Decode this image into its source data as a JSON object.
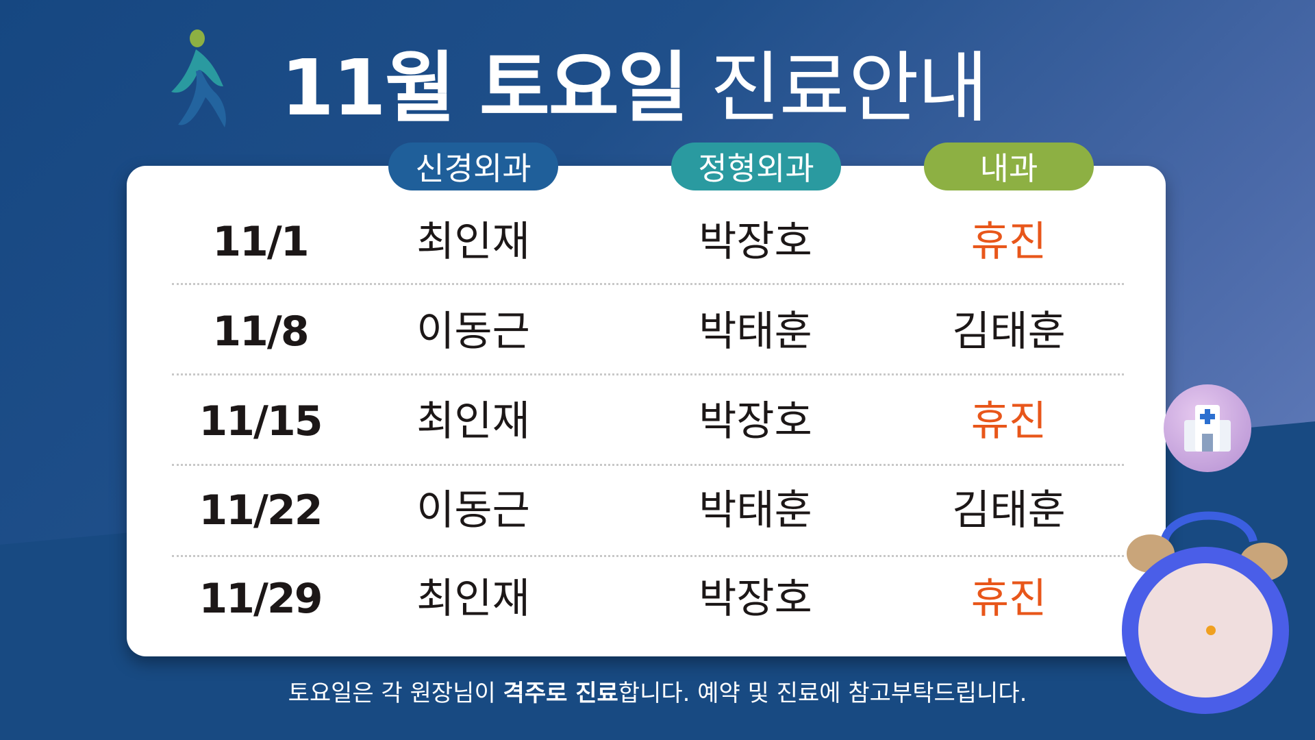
{
  "title": {
    "month": "11월 토요일",
    "rest": " 진료안내"
  },
  "departments": [
    "신경외과",
    "정형외과",
    "내과"
  ],
  "rows": [
    {
      "date": "11/1",
      "neuro": "최인재",
      "ortho": "박장호",
      "internal": "휴진",
      "internal_off": true
    },
    {
      "date": "11/8",
      "neuro": "이동근",
      "ortho": "박태훈",
      "internal": "김태훈",
      "internal_off": false
    },
    {
      "date": "11/15",
      "neuro": "최인재",
      "ortho": "박장호",
      "internal": "휴진",
      "internal_off": true
    },
    {
      "date": "11/22",
      "neuro": "이동근",
      "ortho": "박태훈",
      "internal": "김태훈",
      "internal_off": false
    },
    {
      "date": "11/29",
      "neuro": "최인재",
      "ortho": "박장호",
      "internal": "휴진",
      "internal_off": true
    }
  ],
  "footer": {
    "pre": "토요일은 각 원장님이 ",
    "bold": "격주로 진료",
    "post": "합니다. 예약 및 진료에 참고부탁드립니다."
  },
  "colors": {
    "neuro": "#1f5f9a",
    "ortho": "#2a9aa0",
    "internal": "#8db043",
    "off": "#e8561a"
  },
  "icons": [
    "walking-person-logo",
    "hospital-icon",
    "alarm-clock-icon"
  ]
}
